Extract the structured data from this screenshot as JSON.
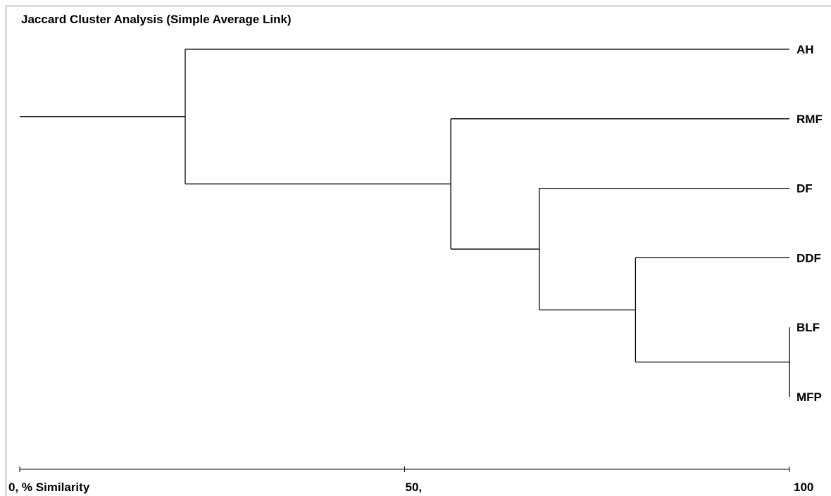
{
  "chart_data": {
    "type": "dendrogram",
    "title": "Jaccard Cluster Analysis (Simple Average Link)",
    "xlim": [
      0,
      100
    ],
    "grid": false,
    "leaves": [
      "AH",
      "RMF",
      "DF",
      "DDF",
      "BLF",
      "MFP"
    ],
    "merges": [
      {
        "left": "BLF",
        "right": "MFP",
        "similarity": 100
      },
      {
        "left": "DDF",
        "right": "BLF+MFP",
        "similarity": 80
      },
      {
        "left": "DF",
        "right": "DDF+BLF+MFP",
        "similarity": 67.5
      },
      {
        "left": "RMF",
        "right": "DF+DDF+BLF+MFP",
        "similarity": 56
      },
      {
        "left": "AH",
        "right": "RMF+DF+DDF+BLF+MFP",
        "similarity": 21.5
      }
    ],
    "root_similarity": 0,
    "ticks": [
      {
        "value": 0,
        "label": "0,   % Similarity"
      },
      {
        "value": 50,
        "label": "50,"
      },
      {
        "value": 100,
        "label": "100"
      }
    ]
  }
}
